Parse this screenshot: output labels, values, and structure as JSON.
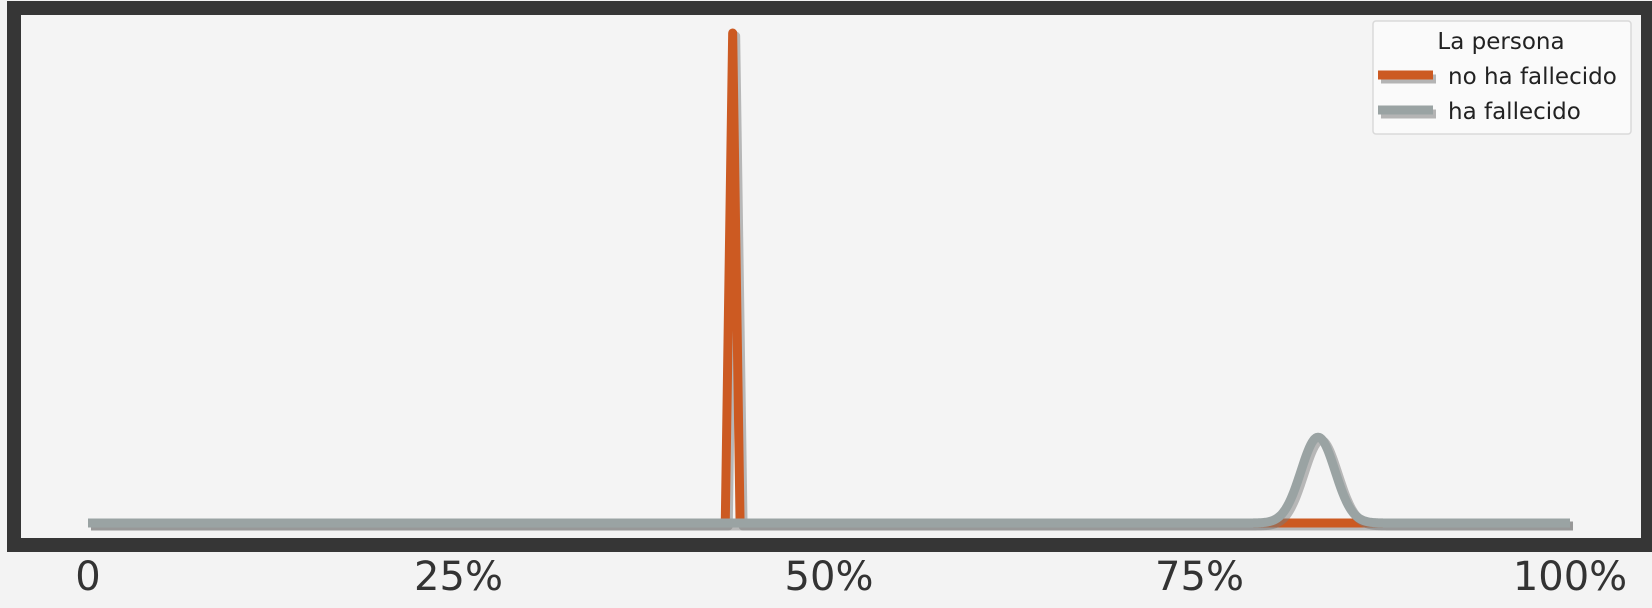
{
  "chart_data": {
    "type": "line",
    "title": "",
    "xlabel": "",
    "ylabel": "",
    "xlim": [
      0,
      100
    ],
    "x_tick_values": [
      0,
      25,
      50,
      75,
      100
    ],
    "x_tick_labels": [
      "0",
      "25%",
      "50%",
      "75%",
      "100%"
    ],
    "y_axis_visible": false,
    "grid": false,
    "legend": {
      "title": "La persona",
      "position": "top-right"
    },
    "series": [
      {
        "name": "no ha fallecido",
        "color": "#cc5a22",
        "shape": "spike",
        "peak_x": 43.5,
        "half_width": 0.5,
        "peak_density": 1.0
      },
      {
        "name": "ha fallecido",
        "color": "#9aa3a3",
        "shape": "bell",
        "peak_x": 83.0,
        "sigma": 1.15,
        "peak_density": 0.175
      }
    ]
  },
  "colors": {
    "background": "#f3f3f3",
    "plot_background": "#f4f4f4",
    "frame": "#363636",
    "shadow": "#7a7a7a"
  }
}
